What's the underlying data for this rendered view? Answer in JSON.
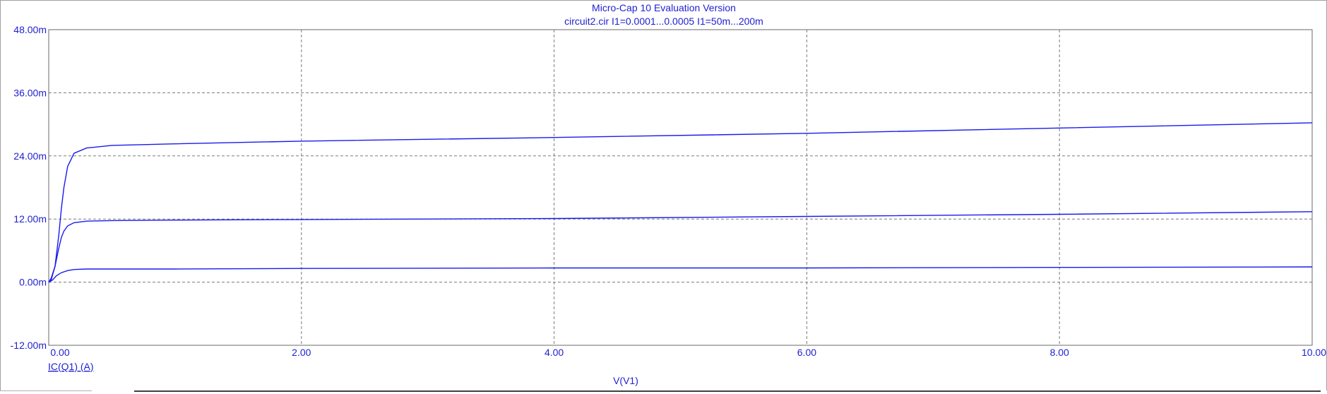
{
  "window": {
    "title": "Micro-Cap 10 Evaluation Version",
    "subtitle": "circuit2.cir I1=0.0001...0.0005 I1=50m...200m"
  },
  "colors": {
    "text": "#1f1fd0",
    "series": "#1a1aee",
    "grid": "#7a7a7a"
  },
  "chart_data": {
    "type": "line",
    "title": "Micro-Cap 10 Evaluation Version",
    "subtitle": "circuit2.cir I1=0.0001...0.0005 I1=50m...200m",
    "xlabel": "V(V1)",
    "ylabel": "IC(Q1) (A)",
    "xlim": [
      0,
      10
    ],
    "ylim": [
      -0.012,
      0.048
    ],
    "x_ticks": [
      0,
      2,
      4,
      6,
      8,
      10
    ],
    "x_tick_labels": [
      "0.00",
      "2.00",
      "4.00",
      "6.00",
      "8.00",
      "10.00"
    ],
    "y_ticks": [
      -0.012,
      0,
      0.012,
      0.024,
      0.036,
      0.048
    ],
    "y_tick_labels": [
      "-12.00m",
      "0.00m",
      "12.00m",
      "24.00m",
      "36.00m",
      "48.00m"
    ],
    "grid": true,
    "legend": "none",
    "series": [
      {
        "x": [
          0,
          0.02,
          0.05,
          0.08,
          0.1,
          0.12,
          0.15,
          0.2,
          0.3,
          0.5,
          1,
          2,
          4,
          6,
          8,
          10
        ],
        "y": [
          0,
          0.0005,
          0.003,
          0.009,
          0.014,
          0.018,
          0.022,
          0.0245,
          0.0255,
          0.026,
          0.0263,
          0.0268,
          0.0275,
          0.0283,
          0.0293,
          0.0303
        ]
      },
      {
        "x": [
          0,
          0.02,
          0.05,
          0.08,
          0.1,
          0.12,
          0.15,
          0.2,
          0.3,
          0.5,
          1,
          2,
          4,
          6,
          8,
          10
        ],
        "y": [
          0,
          0.0008,
          0.003,
          0.0065,
          0.0085,
          0.0097,
          0.0107,
          0.0113,
          0.0116,
          0.0117,
          0.0118,
          0.0119,
          0.0121,
          0.0125,
          0.0129,
          0.0134
        ]
      },
      {
        "x": [
          0,
          0.03,
          0.06,
          0.1,
          0.15,
          0.2,
          0.3,
          0.5,
          1,
          2,
          4,
          6,
          8,
          10
        ],
        "y": [
          0,
          0.0004,
          0.0012,
          0.0018,
          0.0022,
          0.0024,
          0.0025,
          0.0025,
          0.0025,
          0.0026,
          0.0027,
          0.0027,
          0.0028,
          0.0029
        ]
      }
    ]
  }
}
